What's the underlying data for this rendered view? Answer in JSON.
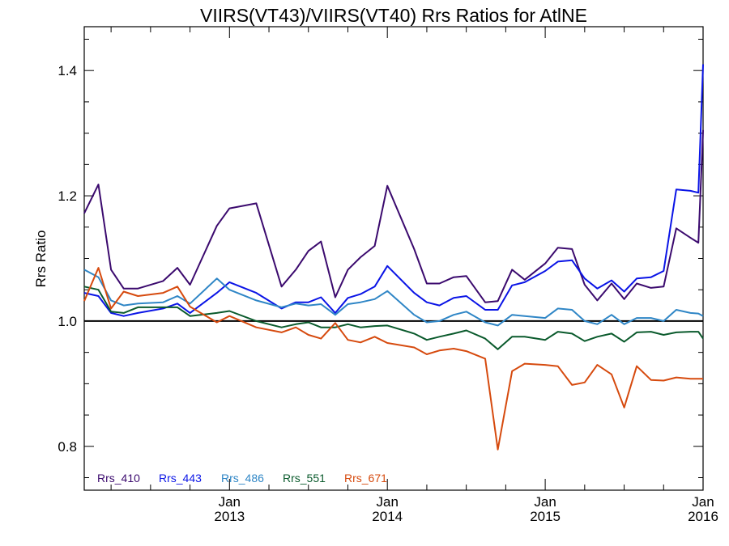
{
  "chart_data": {
    "type": "line",
    "title": "VIIRS(VT43)/VIIRS(VT40)  Rrs Ratios for AtlNE",
    "ylabel": "Rrs Ratio",
    "xlabel": "",
    "xlim": [
      2012.08,
      2016.0
    ],
    "ylim": [
      0.73,
      1.47
    ],
    "yticks": [
      0.8,
      1.0,
      1.2,
      1.4
    ],
    "ytick_labels": [
      "0.8",
      "1.0",
      "1.2",
      "1.4"
    ],
    "xticks": [
      {
        "x": 2013.0,
        "line1": "Jan",
        "line2": "2013"
      },
      {
        "x": 2014.0,
        "line1": "Jan",
        "line2": "2014"
      },
      {
        "x": 2015.0,
        "line1": "Jan",
        "line2": "2015"
      },
      {
        "x": 2016.0,
        "line1": "Jan",
        "line2": "2016"
      }
    ],
    "reference_line": 1.0,
    "legend_position": "bottom-left",
    "x": [
      2012.08,
      2012.17,
      2012.25,
      2012.33,
      2012.42,
      2012.58,
      2012.67,
      2012.75,
      2012.92,
      2013.0,
      2013.17,
      2013.33,
      2013.42,
      2013.5,
      2013.58,
      2013.67,
      2013.75,
      2013.83,
      2013.92,
      2014.0,
      2014.17,
      2014.25,
      2014.33,
      2014.42,
      2014.5,
      2014.62,
      2014.7,
      2014.79,
      2014.87,
      2015.0,
      2015.08,
      2015.17,
      2015.25,
      2015.33,
      2015.42,
      2015.5,
      2015.58,
      2015.67,
      2015.75,
      2015.83,
      2015.92,
      2015.97,
      2016.0
    ],
    "series": [
      {
        "name": "Rrs_410",
        "color": "#3b0a6e",
        "values": [
          1.172,
          1.218,
          1.082,
          1.052,
          1.052,
          1.064,
          1.085,
          1.058,
          1.152,
          1.18,
          1.188,
          1.055,
          1.082,
          1.112,
          1.127,
          1.038,
          1.082,
          1.102,
          1.12,
          1.216,
          1.115,
          1.06,
          1.06,
          1.07,
          1.072,
          1.03,
          1.032,
          1.082,
          1.066,
          1.092,
          1.117,
          1.115,
          1.058,
          1.033,
          1.06,
          1.035,
          1.06,
          1.053,
          1.055,
          1.148,
          1.133,
          1.125,
          1.305
        ]
      },
      {
        "name": "Rrs_443",
        "color": "#0a14e6",
        "values": [
          1.045,
          1.04,
          1.013,
          1.008,
          1.013,
          1.02,
          1.028,
          1.013,
          1.045,
          1.062,
          1.045,
          1.02,
          1.03,
          1.03,
          1.038,
          1.013,
          1.037,
          1.043,
          1.055,
          1.088,
          1.045,
          1.03,
          1.025,
          1.037,
          1.04,
          1.018,
          1.018,
          1.057,
          1.062,
          1.08,
          1.095,
          1.097,
          1.068,
          1.052,
          1.065,
          1.047,
          1.068,
          1.07,
          1.08,
          1.21,
          1.208,
          1.205,
          1.41
        ]
      },
      {
        "name": "Rrs_486",
        "color": "#2f86c6",
        "values": [
          1.082,
          1.07,
          1.033,
          1.025,
          1.028,
          1.03,
          1.04,
          1.028,
          1.068,
          1.05,
          1.033,
          1.022,
          1.028,
          1.025,
          1.027,
          1.01,
          1.027,
          1.03,
          1.035,
          1.048,
          1.01,
          0.998,
          1.0,
          1.01,
          1.015,
          0.998,
          0.993,
          1.01,
          1.008,
          1.005,
          1.02,
          1.018,
          1.0,
          0.995,
          1.01,
          0.995,
          1.005,
          1.005,
          1.0,
          1.018,
          1.013,
          1.012,
          1.008
        ]
      },
      {
        "name": "Rrs_551",
        "color": "#0a5a2c",
        "values": [
          1.055,
          1.05,
          1.015,
          1.013,
          1.022,
          1.022,
          1.022,
          1.008,
          1.013,
          1.016,
          1.0,
          0.99,
          0.995,
          0.998,
          0.99,
          0.99,
          0.995,
          0.99,
          0.992,
          0.993,
          0.98,
          0.97,
          0.975,
          0.98,
          0.985,
          0.972,
          0.955,
          0.975,
          0.975,
          0.97,
          0.983,
          0.98,
          0.968,
          0.975,
          0.98,
          0.967,
          0.982,
          0.983,
          0.978,
          0.982,
          0.983,
          0.983,
          0.972
        ]
      },
      {
        "name": "Rrs_671",
        "color": "#d64a0e",
        "values": [
          1.032,
          1.085,
          1.02,
          1.047,
          1.04,
          1.045,
          1.055,
          1.023,
          0.998,
          1.008,
          0.99,
          0.982,
          0.99,
          0.978,
          0.972,
          0.997,
          0.97,
          0.966,
          0.975,
          0.965,
          0.958,
          0.947,
          0.953,
          0.956,
          0.952,
          0.94,
          0.795,
          0.92,
          0.932,
          0.93,
          0.928,
          0.898,
          0.902,
          0.93,
          0.915,
          0.862,
          0.928,
          0.906,
          0.905,
          0.91,
          0.908,
          0.908,
          0.908
        ]
      }
    ]
  }
}
